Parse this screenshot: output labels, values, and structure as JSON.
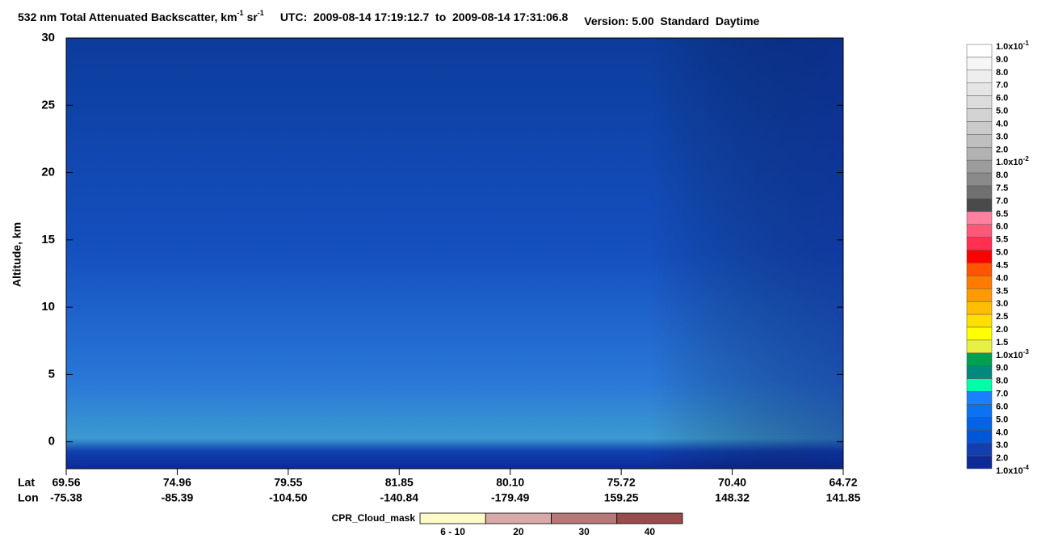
{
  "chart_data": {
    "type": "heatmap",
    "title": [
      {
        "text": "532 nm Total Attenuated Backscatter, km",
        "sup": "-1"
      },
      {
        "text": "sr",
        "sup": "-1"
      },
      {
        "text": "UTC:  2009-08-14 17:19:12.7  to  2009-08-14 17:31:06.8"
      },
      {
        "text": "Version: 5.00  Standard  Daytime"
      }
    ],
    "ylabel": "Altitude, km",
    "ylim": [
      -2,
      30
    ],
    "yticks": [
      0,
      5,
      10,
      15,
      20,
      25,
      30
    ],
    "x_row_names": [
      "Lat",
      "Lon"
    ],
    "categories": [
      "69.56",
      "74.96",
      "79.55",
      "81.85",
      "80.10",
      "75.72",
      "70.40",
      "64.72"
    ],
    "lon": [
      "-75.38",
      "-85.39",
      "-104.50",
      "-140.84",
      "-179.49",
      "159.25",
      "148.32",
      "141.85"
    ],
    "colorbar": {
      "labels": [
        {
          "text": "1.0x10",
          "sup": "-1"
        },
        {
          "text": "9.0"
        },
        {
          "text": "8.0"
        },
        {
          "text": "7.0"
        },
        {
          "text": "6.0"
        },
        {
          "text": "5.0"
        },
        {
          "text": "4.0"
        },
        {
          "text": "3.0"
        },
        {
          "text": "2.0"
        },
        {
          "text": "1.0x10",
          "sup": "-2"
        },
        {
          "text": "8.0"
        },
        {
          "text": "7.5"
        },
        {
          "text": "7.0"
        },
        {
          "text": "6.5"
        },
        {
          "text": "6.0"
        },
        {
          "text": "5.5"
        },
        {
          "text": "5.0"
        },
        {
          "text": "4.5"
        },
        {
          "text": "4.0"
        },
        {
          "text": "3.5"
        },
        {
          "text": "3.0"
        },
        {
          "text": "2.5"
        },
        {
          "text": "2.0"
        },
        {
          "text": "1.5"
        },
        {
          "text": "1.0x10",
          "sup": "-3"
        },
        {
          "text": "9.0"
        },
        {
          "text": "8.0"
        },
        {
          "text": "7.0"
        },
        {
          "text": "6.0"
        },
        {
          "text": "5.0"
        },
        {
          "text": "4.0"
        },
        {
          "text": "3.0"
        },
        {
          "text": "2.0"
        },
        {
          "text": "1.0x10",
          "sup": "-4"
        }
      ],
      "colors": [
        "#ffffff",
        "#f6f6f6",
        "#eeeeee",
        "#e5e5e5",
        "#dcdcdc",
        "#d3d3d3",
        "#cacaca",
        "#bfbfbf",
        "#b2b2b2",
        "#9c9c9c",
        "#8a8a8a",
        "#707070",
        "#4a4a4a",
        "#ff80a0",
        "#ff5878",
        "#ff3050",
        "#ff0000",
        "#ff5500",
        "#ff7a00",
        "#ff9a00",
        "#ffbf00",
        "#ffdf00",
        "#ffff00",
        "#e8f040",
        "#00a050",
        "#008a7e",
        "#00ffa8",
        "#1a80ff",
        "#0d72f2",
        "#0064e4",
        "#0056d6",
        "#123fb0",
        "#0d2a98"
      ]
    },
    "cpr_legend": {
      "title": "CPR_Cloud_mask",
      "labels": [
        "6 - 10",
        "20",
        "30",
        "40"
      ],
      "colors": [
        "#fffbc8",
        "#d9a8a8",
        "#b87878",
        "#9a4c4c"
      ]
    }
  }
}
